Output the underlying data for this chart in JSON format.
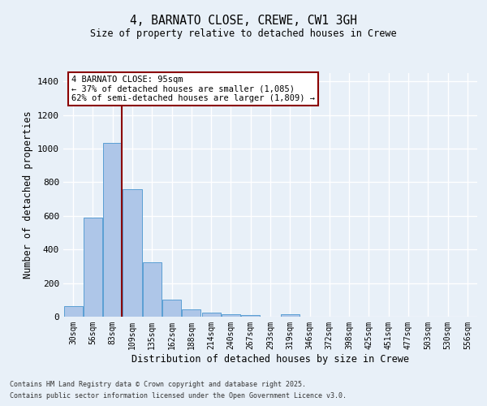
{
  "title1": "4, BARNATO CLOSE, CREWE, CW1 3GH",
  "title2": "Size of property relative to detached houses in Crewe",
  "xlabel": "Distribution of detached houses by size in Crewe",
  "ylabel": "Number of detached properties",
  "categories": [
    "30sqm",
    "56sqm",
    "83sqm",
    "109sqm",
    "135sqm",
    "162sqm",
    "188sqm",
    "214sqm",
    "240sqm",
    "267sqm",
    "293sqm",
    "319sqm",
    "346sqm",
    "372sqm",
    "398sqm",
    "425sqm",
    "451sqm",
    "477sqm",
    "503sqm",
    "530sqm",
    "556sqm"
  ],
  "values": [
    65,
    590,
    1035,
    760,
    325,
    100,
    45,
    25,
    15,
    10,
    0,
    15,
    0,
    0,
    0,
    0,
    0,
    0,
    0,
    0,
    0
  ],
  "bar_color": "#aec6e8",
  "bar_edge_color": "#5a9fd4",
  "bg_color": "#e8f0f8",
  "grid_color": "#ffffff",
  "vline_color": "#8b0000",
  "vline_x": 2.46,
  "annotation_text": "4 BARNATO CLOSE: 95sqm\n← 37% of detached houses are smaller (1,085)\n62% of semi-detached houses are larger (1,809) →",
  "annotation_box_color": "#ffffff",
  "annotation_box_edge": "#8b0000",
  "ylim": [
    0,
    1450
  ],
  "yticks": [
    0,
    200,
    400,
    600,
    800,
    1000,
    1200,
    1400
  ],
  "footer1": "Contains HM Land Registry data © Crown copyright and database right 2025.",
  "footer2": "Contains public sector information licensed under the Open Government Licence v3.0."
}
